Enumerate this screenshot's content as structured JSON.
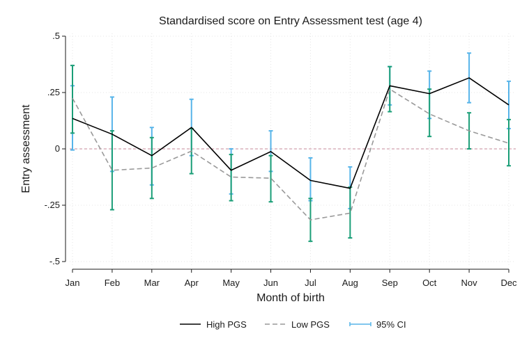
{
  "chart_data": {
    "type": "line",
    "title": "Standardised score on Entry Assessment test (age 4)",
    "xlabel": "Month of birth",
    "ylabel": "Entry assessment",
    "categories": [
      "Jan",
      "Feb",
      "Mar",
      "Apr",
      "May",
      "Jun",
      "Jul",
      "Aug",
      "Sep",
      "Oct",
      "Nov",
      "Dec"
    ],
    "ylim": [
      -0.5,
      0.5
    ],
    "yticks": [
      0.5,
      0.25,
      0,
      -0.25,
      -0.5
    ],
    "ytick_labels": [
      ".5",
      ".25",
      "0",
      "-.25",
      "-.5"
    ],
    "reference_line": 0,
    "grid": true,
    "legend_position": "bottom",
    "series": [
      {
        "name": "High PGS",
        "color": "#000000",
        "style": "solid",
        "values": [
          0.135,
          0.065,
          -0.03,
          0.095,
          -0.095,
          -0.012,
          -0.14,
          -0.175,
          0.28,
          0.245,
          0.315,
          0.195
        ]
      },
      {
        "name": "Low PGS",
        "color": "#999999",
        "style": "dashed",
        "values": [
          0.225,
          -0.095,
          -0.085,
          -0.01,
          -0.125,
          -0.13,
          -0.315,
          -0.285,
          0.265,
          0.155,
          0.08,
          0.025
        ]
      }
    ],
    "ci": [
      {
        "series": "High PGS",
        "name": "95% CI",
        "color": "#56b4e9",
        "lower": [
          -0.005,
          -0.1,
          -0.16,
          -0.03,
          -0.2,
          -0.1,
          -0.23,
          -0.265,
          0.195,
          0.135,
          0.205,
          0.09
        ],
        "upper": [
          0.28,
          0.23,
          0.095,
          0.22,
          0.0,
          0.08,
          -0.04,
          -0.08,
          0.365,
          0.345,
          0.425,
          0.3
        ]
      },
      {
        "series": "Low PGS",
        "name": "95% CI",
        "color": "#1a9e77",
        "lower": [
          0.07,
          -0.27,
          -0.22,
          -0.11,
          -0.23,
          -0.235,
          -0.41,
          -0.395,
          0.165,
          0.055,
          0.0,
          -0.075
        ],
        "upper": [
          0.37,
          0.08,
          0.05,
          0.09,
          -0.025,
          -0.03,
          -0.22,
          -0.17,
          0.365,
          0.265,
          0.16,
          0.13
        ]
      }
    ],
    "legend": [
      {
        "label": "High PGS",
        "style": "solid",
        "color": "#000000"
      },
      {
        "label": "Low PGS",
        "style": "dashed",
        "color": "#999999"
      },
      {
        "label": "95% CI",
        "style": "ci",
        "color": "#56b4e9"
      }
    ],
    "colors": {
      "zero_line": "#c78a9a",
      "grid": "#e4e4e4",
      "axis": "#1a1a1a"
    }
  }
}
